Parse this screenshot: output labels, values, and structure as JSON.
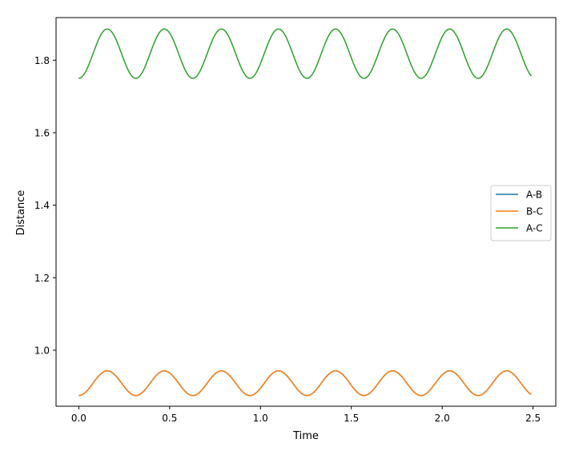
{
  "chart_data": {
    "type": "line",
    "title": "",
    "xlabel": "Time",
    "ylabel": "Distance",
    "xlim": [
      -0.125,
      2.625
    ],
    "ylim": [
      0.8455,
      1.9175
    ],
    "xticks": [
      0.0,
      0.5,
      1.0,
      1.5,
      2.0,
      2.5
    ],
    "xtick_labels": [
      "0.0",
      "0.5",
      "1.0",
      "1.5",
      "2.0",
      "2.5"
    ],
    "yticks": [
      1.0,
      1.2,
      1.4,
      1.6,
      1.8
    ],
    "ytick_labels": [
      "1.0",
      "1.2",
      "1.4",
      "1.6",
      "1.8"
    ],
    "grid": false,
    "legend_position": "center-right",
    "x_range": [
      0.0,
      2.49
    ],
    "series": [
      {
        "name": "A-B",
        "color": "#1f77b4",
        "min": 0.875,
        "max": 0.943,
        "period": 0.314,
        "start_phase": "minimum"
      },
      {
        "name": "B-C",
        "color": "#ff7f0e",
        "min": 0.875,
        "max": 0.943,
        "period": 0.314,
        "start_phase": "minimum"
      },
      {
        "name": "A-C",
        "color": "#2ca02c",
        "min": 1.75,
        "max": 1.886,
        "period": 0.314,
        "start_phase": "minimum"
      }
    ]
  }
}
